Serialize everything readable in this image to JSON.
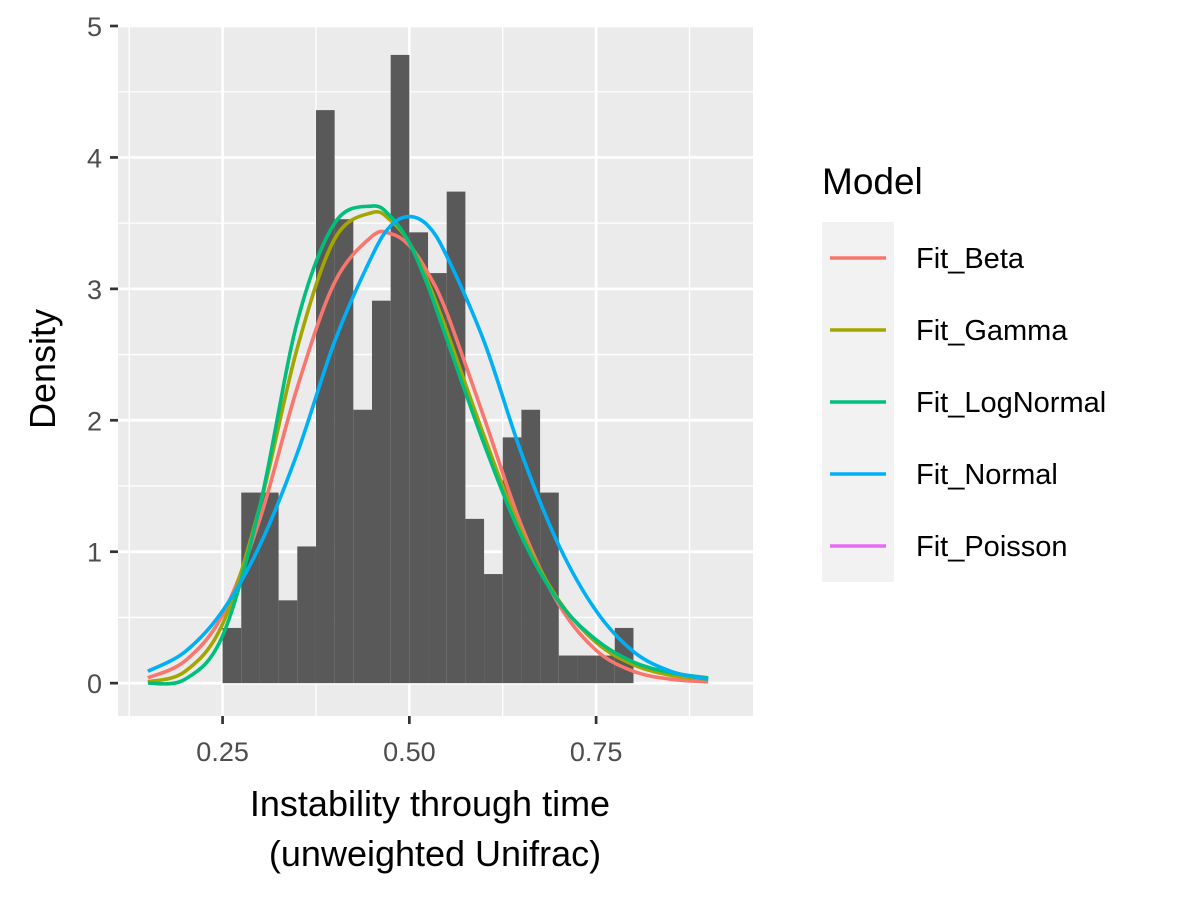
{
  "chart_data": {
    "type": "histogram",
    "xlabel_lines": [
      "Instability through time",
      "(unweighted Unifrac)"
    ],
    "ylabel": "Density",
    "xlim": [
      0.11,
      0.96
    ],
    "ylim": [
      -0.25,
      5.0
    ],
    "x_ticks": [
      0.25,
      0.5,
      0.75
    ],
    "x_tick_labels": [
      "0.25",
      "0.50",
      "0.75"
    ],
    "y_ticks": [
      0,
      1,
      2,
      3,
      4,
      5
    ],
    "y_tick_labels": [
      "0",
      "1",
      "2",
      "3",
      "4",
      "5"
    ],
    "grid": true,
    "histogram": {
      "bin_width": 0.025,
      "bins": [
        {
          "x0": 0.25,
          "x1": 0.275,
          "density": 0.42
        },
        {
          "x0": 0.275,
          "x1": 0.3,
          "density": 1.45
        },
        {
          "x0": 0.3,
          "x1": 0.325,
          "density": 1.45
        },
        {
          "x0": 0.325,
          "x1": 0.35,
          "density": 0.63
        },
        {
          "x0": 0.35,
          "x1": 0.375,
          "density": 1.04
        },
        {
          "x0": 0.375,
          "x1": 0.4,
          "density": 4.36
        },
        {
          "x0": 0.4,
          "x1": 0.425,
          "density": 3.53
        },
        {
          "x0": 0.425,
          "x1": 0.45,
          "density": 2.08
        },
        {
          "x0": 0.45,
          "x1": 0.475,
          "density": 2.91
        },
        {
          "x0": 0.475,
          "x1": 0.5,
          "density": 4.78
        },
        {
          "x0": 0.5,
          "x1": 0.525,
          "density": 3.43
        },
        {
          "x0": 0.525,
          "x1": 0.55,
          "density": 3.12
        },
        {
          "x0": 0.55,
          "x1": 0.575,
          "density": 3.74
        },
        {
          "x0": 0.575,
          "x1": 0.6,
          "density": 1.25
        },
        {
          "x0": 0.6,
          "x1": 0.625,
          "density": 0.83
        },
        {
          "x0": 0.625,
          "x1": 0.65,
          "density": 1.87
        },
        {
          "x0": 0.65,
          "x1": 0.675,
          "density": 2.08
        },
        {
          "x0": 0.675,
          "x1": 0.7,
          "density": 1.45
        },
        {
          "x0": 0.7,
          "x1": 0.725,
          "density": 0.21
        },
        {
          "x0": 0.725,
          "x1": 0.75,
          "density": 0.21
        },
        {
          "x0": 0.75,
          "x1": 0.775,
          "density": 0.21
        },
        {
          "x0": 0.775,
          "x1": 0.8,
          "density": 0.42
        }
      ]
    },
    "legend_title": "Model",
    "legend_position": "right",
    "series": [
      {
        "name": "Fit_Beta",
        "color": "#F8766D",
        "x": [
          0.15,
          0.2,
          0.25,
          0.3,
          0.35,
          0.4,
          0.45,
          0.475,
          0.5,
          0.525,
          0.55,
          0.6,
          0.65,
          0.7,
          0.75,
          0.8,
          0.85,
          0.9
        ],
        "y": [
          0.04,
          0.17,
          0.52,
          1.25,
          2.25,
          3.05,
          3.4,
          3.42,
          3.33,
          3.12,
          2.82,
          2.02,
          1.2,
          0.6,
          0.25,
          0.09,
          0.03,
          0.01
        ]
      },
      {
        "name": "Fit_Gamma",
        "color": "#A3A500",
        "x": [
          0.15,
          0.2,
          0.25,
          0.3,
          0.35,
          0.4,
          0.45,
          0.475,
          0.5,
          0.525,
          0.55,
          0.6,
          0.65,
          0.7,
          0.75,
          0.8,
          0.85,
          0.9
        ],
        "y": [
          0.01,
          0.09,
          0.45,
          1.35,
          2.55,
          3.38,
          3.58,
          3.52,
          3.35,
          3.05,
          2.68,
          1.88,
          1.15,
          0.63,
          0.31,
          0.14,
          0.06,
          0.03
        ]
      },
      {
        "name": "Fit_LogNormal",
        "color": "#00BF7D",
        "x": [
          0.15,
          0.2,
          0.25,
          0.3,
          0.35,
          0.4,
          0.45,
          0.475,
          0.5,
          0.525,
          0.55,
          0.6,
          0.65,
          0.7,
          0.75,
          0.8,
          0.85,
          0.9
        ],
        "y": [
          0.0,
          0.03,
          0.36,
          1.35,
          2.75,
          3.5,
          3.63,
          3.55,
          3.35,
          3.02,
          2.62,
          1.82,
          1.12,
          0.62,
          0.33,
          0.16,
          0.08,
          0.04
        ]
      },
      {
        "name": "Fit_Normal",
        "color": "#00B0F6",
        "x": [
          0.15,
          0.2,
          0.25,
          0.3,
          0.35,
          0.4,
          0.45,
          0.475,
          0.5,
          0.525,
          0.55,
          0.6,
          0.65,
          0.7,
          0.75,
          0.8,
          0.85,
          0.9
        ],
        "y": [
          0.09,
          0.24,
          0.55,
          1.05,
          1.75,
          2.6,
          3.25,
          3.48,
          3.55,
          3.48,
          3.25,
          2.6,
          1.75,
          1.05,
          0.55,
          0.24,
          0.09,
          0.03
        ]
      },
      {
        "name": "Fit_Poisson",
        "color": "#E76BF3",
        "x": [],
        "y": []
      }
    ]
  }
}
